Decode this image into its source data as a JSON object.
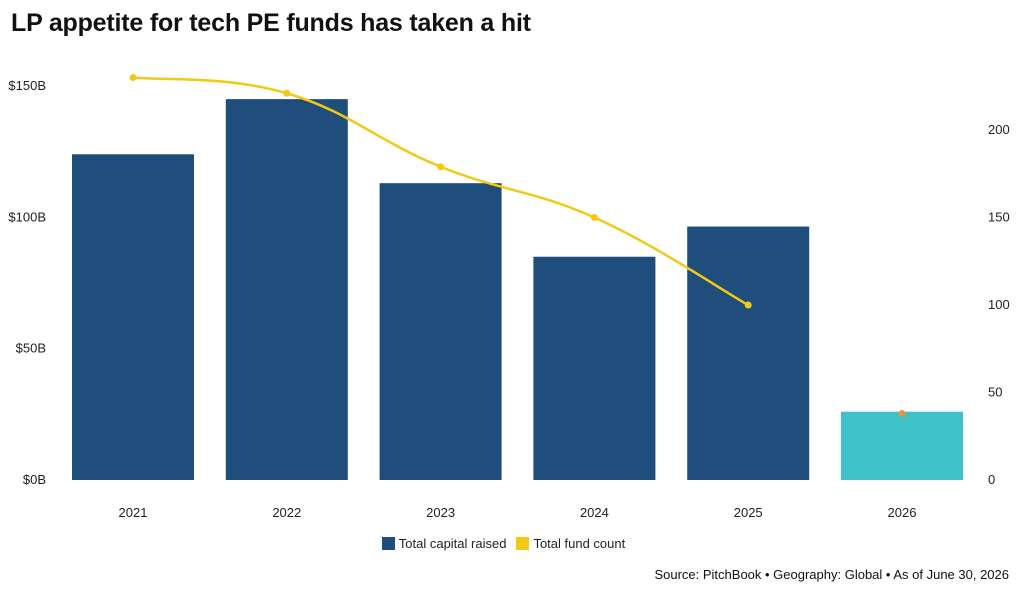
{
  "title": "LP appetite for tech PE funds has taken a hit",
  "source": "Source: PitchBook • Geography: Global • As of June 30, 2026",
  "colors": {
    "capital": "#1f4e7c",
    "capital_partial": "#3fc1c9",
    "count": "#f2c913",
    "count_partial": "#e8923a"
  },
  "legend": [
    {
      "label": "Total capital raised",
      "color": "#1f4e7c"
    },
    {
      "label": "Total fund count",
      "color": "#f2c913"
    }
  ],
  "chart_data": {
    "type": "bar",
    "categories": [
      "2021",
      "2022",
      "2023",
      "2024",
      "2025",
      "2026"
    ],
    "series": [
      {
        "name": "Total capital raised",
        "type": "bar",
        "axis": "left",
        "values": [
          124,
          145,
          113,
          85,
          96.5,
          26
        ]
      },
      {
        "name": "Total fund count",
        "type": "line",
        "axis": "right",
        "values": [
          230,
          221,
          179,
          150,
          100,
          38
        ]
      }
    ],
    "y_left": {
      "ticks": [
        "$0B",
        "$50B",
        "$100B",
        "$150B"
      ],
      "tick_values": [
        0,
        50,
        100,
        150
      ],
      "range": [
        0,
        150
      ]
    },
    "y_right": {
      "ticks": [
        "0",
        "50",
        "100",
        "150",
        "200"
      ],
      "tick_values": [
        0,
        50,
        100,
        150,
        200
      ],
      "range": [
        0,
        200
      ]
    },
    "partial_period": "2026",
    "grid": false,
    "legend_position": "bottom-center"
  }
}
